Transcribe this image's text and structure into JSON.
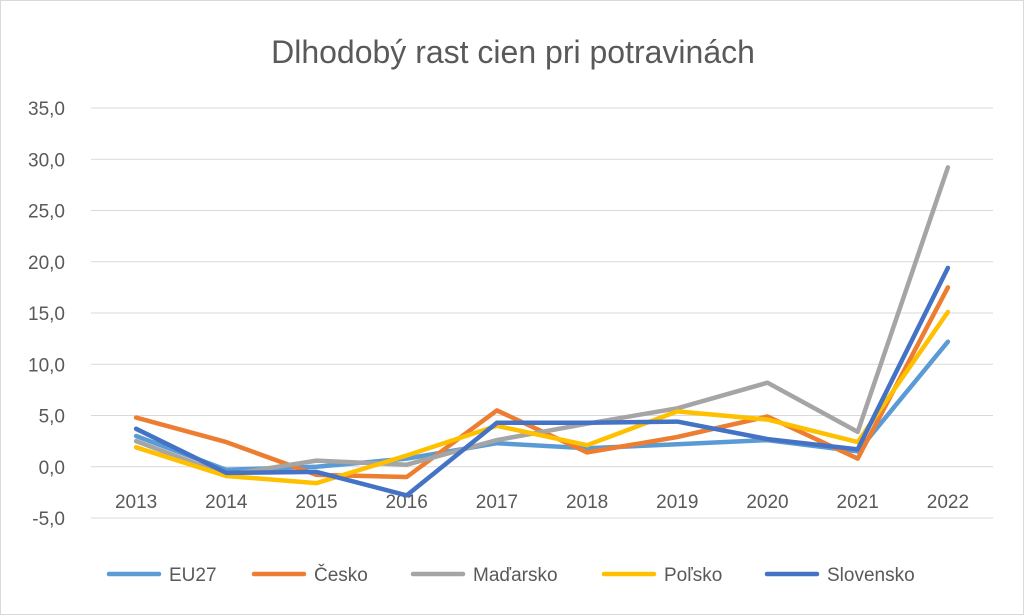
{
  "chart_data": {
    "type": "line",
    "title": "Dlhodobý rast cien pri potravinách",
    "categories": [
      "2013",
      "2014",
      "2015",
      "2016",
      "2017",
      "2018",
      "2019",
      "2020",
      "2021",
      "2022"
    ],
    "y_tick_labels": [
      "-5,0",
      "0,0",
      "5,0",
      "10,0",
      "15,0",
      "20,0",
      "25,0",
      "30,0",
      "35,0"
    ],
    "y_ticks": [
      -5,
      0,
      5,
      10,
      15,
      20,
      25,
      30,
      35
    ],
    "ylim": [
      -5,
      35
    ],
    "grid": true,
    "legend_position": "bottom",
    "series": [
      {
        "name": "EU27",
        "color": "#5b9bd5",
        "values": [
          3.0,
          -0.3,
          0.0,
          0.8,
          2.3,
          1.8,
          2.2,
          2.6,
          1.5,
          12.2
        ]
      },
      {
        "name": "Česko",
        "color": "#ed7d31",
        "values": [
          4.8,
          2.4,
          -0.8,
          -1.0,
          5.5,
          1.4,
          2.9,
          4.9,
          0.8,
          17.5
        ]
      },
      {
        "name": "Maďarsko",
        "color": "#a5a5a5",
        "values": [
          2.5,
          -0.8,
          0.6,
          0.2,
          2.6,
          4.2,
          5.7,
          8.2,
          3.4,
          29.2
        ]
      },
      {
        "name": "Poľsko",
        "color": "#ffc000",
        "values": [
          1.9,
          -0.9,
          -1.6,
          1.1,
          4.0,
          2.1,
          5.4,
          4.6,
          2.4,
          15.1
        ]
      },
      {
        "name": "Slovensko",
        "color": "#4472c4",
        "values": [
          3.7,
          -0.6,
          -0.5,
          -2.8,
          4.3,
          4.3,
          4.4,
          2.7,
          1.7,
          19.4
        ]
      }
    ]
  }
}
